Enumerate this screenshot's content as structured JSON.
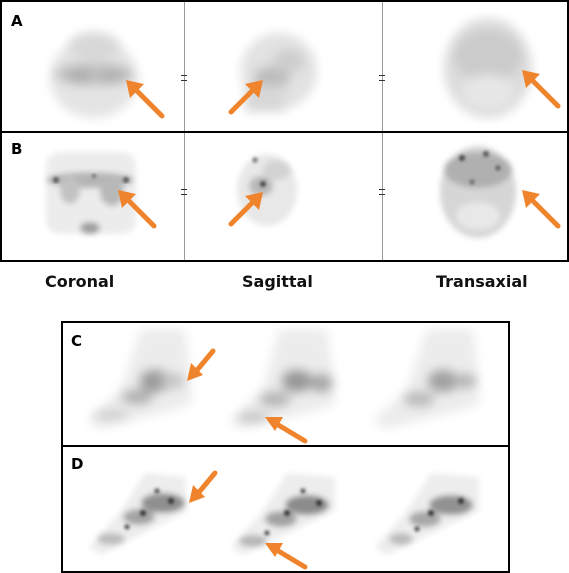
{
  "colors": {
    "arrow": "#f0842c",
    "frame": "#000000",
    "divider": "#9a9a9a"
  },
  "panel_labels": {
    "a": "A",
    "b": "B",
    "c": "C",
    "d": "D"
  },
  "view_captions": {
    "coronal": "Coronal",
    "sagittal": "Sagittal",
    "transaxial": "Transaxial"
  },
  "icons": {
    "arrow": "arrow-icon"
  }
}
